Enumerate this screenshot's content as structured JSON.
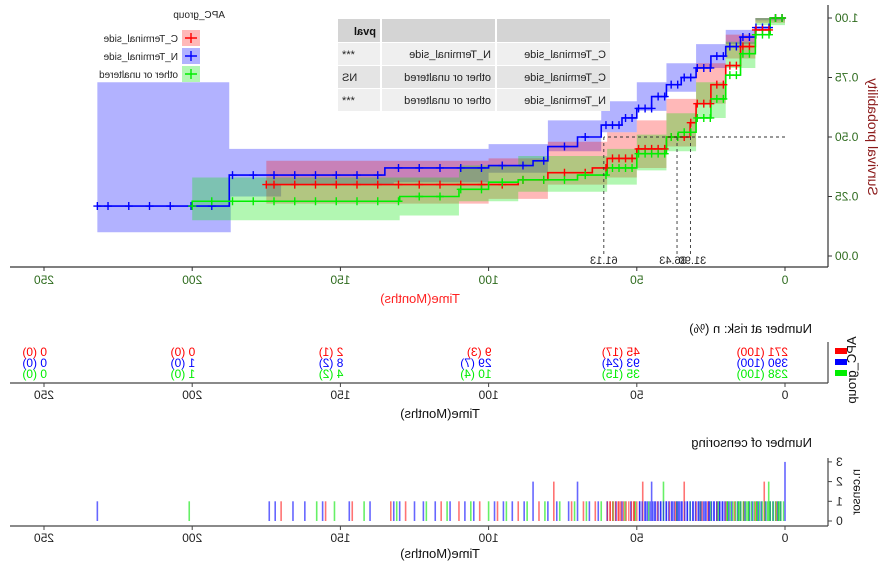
{
  "chart_data": [
    {
      "type": "line",
      "subtype": "kaplan-meier",
      "title": "",
      "xlabel": "Time(Months)",
      "ylabel": "Survival probability",
      "xlim": [
        0,
        250
      ],
      "ylim": [
        0,
        1
      ],
      "xticks": [
        "0",
        "50",
        "100",
        "150",
        "200",
        "250"
      ],
      "yticks": [
        "0.00",
        "0.25",
        "0.50",
        "0.75",
        "1.00"
      ],
      "legend": {
        "title": "APC_group",
        "position": "top-left",
        "entries": [
          "C_Terminal_side",
          "N_Terminal_side",
          "other or unaltered"
        ]
      },
      "colors": {
        "C_Terminal_side": "#ff0000",
        "N_Terminal_side": "#0000ff",
        "other or unaltered": "#00ee00"
      },
      "median_lines": {
        "surv": 0.5,
        "times": [
          31.9,
          36.43,
          61.13
        ],
        "labels": [
          "31.90",
          "36.43",
          "61.13"
        ]
      },
      "series": [
        {
          "name": "N_Terminal_side",
          "points": [
            [
              0,
              1.0
            ],
            [
              5,
              0.96
            ],
            [
              10,
              0.92
            ],
            [
              15,
              0.88
            ],
            [
              20,
              0.84
            ],
            [
              25,
              0.79
            ],
            [
              30,
              0.75
            ],
            [
              35,
              0.72
            ],
            [
              40,
              0.67
            ],
            [
              45,
              0.62
            ],
            [
              50,
              0.58
            ],
            [
              55,
              0.55
            ],
            [
              62,
              0.5
            ],
            [
              70,
              0.46
            ],
            [
              80,
              0.4
            ],
            [
              85,
              0.38
            ],
            [
              100,
              0.37
            ],
            [
              132,
              0.37
            ],
            [
              135,
              0.34
            ],
            [
              170,
              0.34
            ],
            [
              187,
              0.34
            ],
            [
              187.5,
              0.21
            ],
            [
              232,
              0.21
            ]
          ],
          "ci_upper": [
            [
              0,
              1.0
            ],
            [
              10,
              0.95
            ],
            [
              20,
              0.89
            ],
            [
              30,
              0.81
            ],
            [
              40,
              0.73
            ],
            [
              50,
              0.65
            ],
            [
              62,
              0.57
            ],
            [
              80,
              0.47
            ],
            [
              100,
              0.45
            ],
            [
              132,
              0.45
            ],
            [
              170,
              0.45
            ],
            [
              187,
              0.45
            ],
            [
              187.5,
              0.73
            ],
            [
              232,
              0.73
            ]
          ],
          "ci_lower": [
            [
              0,
              0.99
            ],
            [
              10,
              0.89
            ],
            [
              20,
              0.79
            ],
            [
              30,
              0.69
            ],
            [
              40,
              0.61
            ],
            [
              50,
              0.52
            ],
            [
              62,
              0.44
            ],
            [
              80,
              0.35
            ],
            [
              100,
              0.31
            ],
            [
              132,
              0.3
            ],
            [
              170,
              0.25
            ],
            [
              187,
              0.1
            ],
            [
              187.5,
              0.1
            ],
            [
              232,
              0.1
            ]
          ]
        },
        {
          "name": "C_Terminal_side",
          "points": [
            [
              0,
              1.0
            ],
            [
              5,
              0.95
            ],
            [
              10,
              0.88
            ],
            [
              15,
              0.8
            ],
            [
              20,
              0.72
            ],
            [
              25,
              0.64
            ],
            [
              30,
              0.56
            ],
            [
              32,
              0.5
            ],
            [
              40,
              0.45
            ],
            [
              50,
              0.41
            ],
            [
              60,
              0.37
            ],
            [
              65,
              0.35
            ],
            [
              80,
              0.32
            ],
            [
              90,
              0.3
            ],
            [
              175,
              0.3
            ]
          ],
          "ci_upper": [
            [
              0,
              1.0
            ],
            [
              10,
              0.93
            ],
            [
              20,
              0.81
            ],
            [
              30,
              0.66
            ],
            [
              40,
              0.57
            ],
            [
              50,
              0.52
            ],
            [
              60,
              0.48
            ],
            [
              80,
              0.41
            ],
            [
              100,
              0.4
            ],
            [
              175,
              0.4
            ]
          ],
          "ci_lower": [
            [
              0,
              0.98
            ],
            [
              10,
              0.83
            ],
            [
              20,
              0.64
            ],
            [
              30,
              0.46
            ],
            [
              40,
              0.37
            ],
            [
              50,
              0.33
            ],
            [
              60,
              0.3
            ],
            [
              80,
              0.24
            ],
            [
              100,
              0.22
            ],
            [
              175,
              0.21
            ]
          ]
        },
        {
          "name": "other or unaltered",
          "points": [
            [
              0,
              1.0
            ],
            [
              5,
              0.93
            ],
            [
              10,
              0.85
            ],
            [
              15,
              0.76
            ],
            [
              20,
              0.66
            ],
            [
              25,
              0.58
            ],
            [
              30,
              0.52
            ],
            [
              36,
              0.5
            ],
            [
              40,
              0.43
            ],
            [
              50,
              0.37
            ],
            [
              60,
              0.34
            ],
            [
              70,
              0.32
            ],
            [
              90,
              0.31
            ],
            [
              100,
              0.28
            ],
            [
              110,
              0.25
            ],
            [
              130,
              0.23
            ],
            [
              200,
              0.21
            ]
          ],
          "ci_upper": [
            [
              0,
              1.0
            ],
            [
              10,
              0.9
            ],
            [
              20,
              0.73
            ],
            [
              30,
              0.6
            ],
            [
              40,
              0.51
            ],
            [
              50,
              0.45
            ],
            [
              60,
              0.42
            ],
            [
              90,
              0.38
            ],
            [
              110,
              0.33
            ],
            [
              130,
              0.33
            ],
            [
              200,
              0.34
            ]
          ],
          "ci_lower": [
            [
              0,
              0.97
            ],
            [
              10,
              0.79
            ],
            [
              20,
              0.58
            ],
            [
              30,
              0.44
            ],
            [
              40,
              0.36
            ],
            [
              50,
              0.3
            ],
            [
              60,
              0.27
            ],
            [
              90,
              0.23
            ],
            [
              110,
              0.17
            ],
            [
              130,
              0.15
            ],
            [
              200,
              0.15
            ]
          ]
        }
      ],
      "pval_table": {
        "headers": [
          "",
          "",
          "pval"
        ],
        "rows": [
          [
            "C_Terminal_side",
            "N_Terminal_side",
            "***"
          ],
          [
            "C_Terminal_side",
            "other or unaltered",
            "NS"
          ],
          [
            "N_Terminal_side",
            "other or unaltered",
            "***"
          ]
        ]
      }
    },
    {
      "type": "table",
      "title": "Number at risk: n (%)",
      "xlabel": "Time(Months)",
      "ylabel": "APC_group",
      "xticks": [
        "0",
        "50",
        "100",
        "150",
        "200",
        "250"
      ],
      "times": [
        0,
        50,
        100,
        150,
        200,
        250
      ],
      "rows": [
        {
          "name": "C_Terminal_side",
          "values": [
            "271 (100)",
            "45 (17)",
            "9 (3)",
            "2 (1)",
            "0 (0)",
            "0 (0)"
          ]
        },
        {
          "name": "N_Terminal_side",
          "values": [
            "390 (100)",
            "93 (24)",
            "29 (7)",
            "8 (2)",
            "1 (0)",
            "0 (0)"
          ]
        },
        {
          "name": "other or unaltered",
          "values": [
            "238 (100)",
            "35 (15)",
            "10 (4)",
            "4 (2)",
            "1 (0)",
            "0 (0)"
          ]
        }
      ]
    },
    {
      "type": "bar",
      "title": "Number of censoring",
      "xlabel": "Time(Months)",
      "ylabel": "n.censor",
      "xlim": [
        0,
        250
      ],
      "ylim": [
        0,
        3
      ],
      "xticks": [
        "0",
        "50",
        "100",
        "150",
        "200",
        "250"
      ],
      "yticks": [
        "0",
        "1",
        "2",
        "3"
      ],
      "series": [
        {
          "name": "N_Terminal_side",
          "times": [
            0,
            1.5,
            2.5,
            4,
            5,
            6.5,
            8,
            9,
            11,
            12,
            13.5,
            15,
            16,
            18,
            19,
            21,
            22,
            24,
            25.5,
            27,
            29,
            31,
            33,
            35,
            36,
            38,
            40,
            42,
            44,
            45,
            47,
            49,
            52,
            55,
            57,
            60,
            63,
            66,
            70,
            73,
            77,
            80,
            85,
            88,
            92,
            95,
            98,
            105,
            108,
            113,
            118,
            122,
            125,
            130,
            132,
            140,
            147,
            156,
            162,
            166,
            172,
            174,
            232
          ],
          "counts": [
            3,
            1,
            1,
            1,
            1,
            1,
            1,
            1,
            1,
            1,
            1,
            1,
            1,
            1,
            1,
            1,
            1,
            1,
            1,
            1,
            1,
            1,
            1,
            1,
            1,
            1,
            1,
            1,
            1,
            2,
            1,
            1,
            1,
            1,
            1,
            1,
            1,
            1,
            2,
            1,
            1,
            1,
            2,
            1,
            1,
            1,
            1,
            1,
            1,
            1,
            1,
            1,
            1,
            1,
            1,
            1,
            1,
            1,
            1,
            1,
            1,
            1,
            1
          ]
        },
        {
          "name": "C_Terminal_side",
          "times": [
            3,
            7,
            10,
            14,
            17,
            20,
            23,
            26,
            28,
            30,
            34,
            37,
            39,
            43,
            48,
            51,
            56,
            59,
            64,
            68,
            72,
            78,
            83,
            90,
            97,
            103,
            110,
            116,
            128,
            133,
            146,
            155,
            170
          ],
          "counts": [
            1,
            2,
            1,
            1,
            1,
            1,
            1,
            1,
            1,
            1,
            2,
            1,
            1,
            1,
            2,
            1,
            1,
            1,
            1,
            1,
            1,
            2,
            1,
            1,
            1,
            1,
            1,
            1,
            1,
            1,
            1,
            1,
            1
          ]
        },
        {
          "name": "other or unaltered",
          "times": [
            2,
            5.5,
            9.5,
            12.5,
            15.5,
            19.5,
            22.5,
            25,
            28.5,
            32,
            36.5,
            41,
            46,
            50.5,
            54,
            58,
            62,
            67,
            71,
            76,
            81,
            87,
            94,
            100,
            106,
            114,
            121,
            131,
            142,
            152,
            158,
            201
          ],
          "counts": [
            1,
            2,
            1,
            1,
            1,
            1,
            1,
            1,
            1,
            1,
            1,
            2,
            1,
            1,
            1,
            1,
            1,
            1,
            1,
            1,
            1,
            1,
            1,
            1,
            1,
            1,
            1,
            1,
            1,
            1,
            1,
            1
          ]
        }
      ]
    }
  ]
}
